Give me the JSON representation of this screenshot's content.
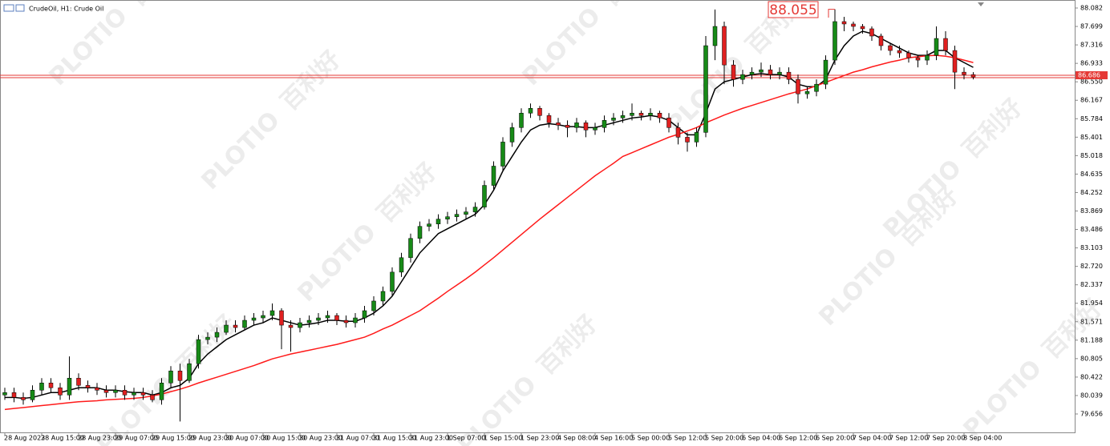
{
  "chart_data": {
    "type": "candlestick",
    "title": "CrudeOil, H1:  Crude Oil",
    "watermark": [
      "PLOTIO",
      "百利好"
    ],
    "annotation": "88.055",
    "up_color": "#178a17",
    "down_color": "#e02020",
    "ylim": [
      79.274,
      88.248
    ],
    "yticks": [
      88.082,
      87.699,
      87.316,
      86.933,
      {
        "value": 86.55,
        "label": "86.550"
      },
      86.167,
      85.784,
      85.401,
      85.018,
      84.635,
      84.252,
      83.869,
      83.486,
      83.103,
      {
        "value": 82.72,
        "label": "82.720"
      },
      82.337,
      81.954,
      81.571,
      81.188,
      80.805,
      80.422,
      80.039,
      79.656
    ],
    "price_lines": [
      86.686,
      86.636
    ],
    "categories": [
      "28 Aug 2023",
      null,
      null,
      null,
      "28 Aug 15:00",
      null,
      null,
      null,
      "28 Aug 23:00",
      null,
      null,
      null,
      "29 Aug 07:00",
      null,
      null,
      null,
      "29 Aug 15:00",
      null,
      null,
      null,
      "29 Aug 23:00",
      null,
      null,
      null,
      "30 Aug 07:00",
      null,
      null,
      null,
      "30 Aug 15:00",
      null,
      null,
      null,
      "30 Aug 23:00",
      null,
      null,
      null,
      "31 Aug 07:00",
      null,
      null,
      null,
      "31 Aug 15:00",
      null,
      null,
      null,
      "31 Aug 23:00",
      null,
      null,
      null,
      "1 Sep 07:00",
      null,
      null,
      null,
      "1 Sep 15:00",
      null,
      null,
      null,
      "1 Sep 23:00",
      null,
      null,
      null,
      "4 Sep 08:00",
      null,
      null,
      null,
      "4 Sep 16:00",
      null,
      null,
      null,
      "5 Sep 00:00",
      null,
      null,
      null,
      "5 Sep 12:00",
      null,
      null,
      null,
      "5 Sep 20:00",
      null,
      null,
      null,
      "6 Sep 04:00",
      null,
      null,
      null,
      "6 Sep 12:00",
      null,
      null,
      null,
      "6 Sep 20:00",
      null,
      null,
      null,
      "7 Sep 04:00",
      null,
      null,
      null,
      "7 Sep 12:00",
      null,
      null,
      null,
      "7 Sep 20:00",
      null,
      null,
      null,
      "8 Sep 04:00",
      null
    ],
    "open": [
      80.05,
      80.1,
      80.0,
      79.95,
      80.15,
      80.3,
      80.2,
      80.05,
      80.4,
      80.25,
      80.2,
      80.15,
      80.1,
      80.15,
      80.05,
      80.1,
      80.05,
      79.95,
      80.3,
      80.55,
      80.35,
      80.7,
      81.2,
      81.25,
      81.35,
      81.5,
      81.45,
      81.6,
      81.65,
      81.7,
      81.8,
      81.5,
      81.45,
      81.55,
      81.6,
      81.65,
      81.7,
      81.6,
      81.55,
      81.65,
      81.8,
      82.0,
      82.2,
      82.6,
      82.9,
      83.3,
      83.55,
      83.6,
      83.7,
      83.75,
      83.8,
      83.85,
      83.95,
      84.4,
      84.8,
      85.3,
      85.6,
      85.9,
      86.0,
      85.85,
      85.7,
      85.65,
      85.6,
      85.7,
      85.55,
      85.6,
      85.75,
      85.8,
      85.85,
      85.9,
      85.85,
      85.9,
      85.8,
      85.6,
      85.4,
      85.3,
      85.5,
      87.3,
      87.7,
      86.9,
      86.6,
      86.7,
      86.75,
      86.8,
      86.7,
      86.75,
      86.6,
      86.3,
      86.35,
      86.5,
      87.0,
      87.8,
      87.75,
      87.7,
      87.65,
      87.5,
      87.3,
      87.2,
      87.15,
      87.05,
      87.0,
      87.1,
      87.45,
      87.2,
      86.75,
      86.7
    ],
    "high": [
      80.2,
      80.2,
      80.1,
      80.25,
      80.4,
      80.4,
      80.3,
      80.85,
      80.5,
      80.35,
      80.3,
      80.25,
      80.25,
      80.25,
      80.2,
      80.2,
      80.15,
      80.4,
      80.65,
      80.7,
      80.8,
      81.3,
      81.35,
      81.45,
      81.6,
      81.6,
      81.7,
      81.75,
      81.8,
      81.95,
      81.85,
      81.6,
      81.65,
      81.7,
      81.75,
      81.8,
      81.75,
      81.7,
      81.75,
      81.9,
      82.1,
      82.3,
      82.7,
      83.0,
      83.4,
      83.65,
      83.7,
      83.8,
      83.85,
      83.9,
      83.95,
      84.05,
      84.5,
      84.9,
      85.4,
      85.7,
      86.0,
      86.1,
      86.05,
      85.9,
      85.8,
      85.75,
      85.8,
      85.75,
      85.7,
      85.85,
      85.9,
      85.95,
      86.1,
      85.95,
      86.0,
      85.95,
      85.9,
      85.7,
      85.5,
      85.6,
      87.5,
      88.05,
      87.8,
      87.0,
      86.8,
      86.85,
      86.95,
      86.9,
      86.85,
      86.85,
      86.7,
      86.45,
      86.6,
      87.1,
      88.055,
      87.9,
      87.8,
      87.75,
      87.7,
      87.55,
      87.35,
      87.3,
      87.2,
      87.1,
      87.2,
      87.7,
      87.6,
      87.3,
      86.85,
      86.75
    ],
    "low": [
      79.95,
      79.9,
      79.85,
      79.9,
      80.05,
      80.1,
      79.95,
      79.95,
      80.15,
      80.1,
      80.05,
      80.0,
      80.0,
      79.95,
      79.95,
      79.95,
      79.9,
      79.85,
      80.2,
      79.5,
      80.3,
      80.6,
      81.1,
      81.15,
      81.3,
      81.35,
      81.4,
      81.5,
      81.55,
      81.6,
      81.0,
      80.95,
      81.35,
      81.45,
      81.5,
      81.55,
      81.5,
      81.45,
      81.45,
      81.55,
      81.7,
      81.9,
      82.1,
      82.5,
      82.8,
      83.2,
      83.45,
      83.5,
      83.6,
      83.65,
      83.7,
      83.75,
      83.9,
      84.3,
      84.7,
      85.2,
      85.5,
      85.8,
      85.75,
      85.6,
      85.55,
      85.4,
      85.5,
      85.4,
      85.45,
      85.5,
      85.65,
      85.7,
      85.75,
      85.75,
      85.75,
      85.7,
      85.5,
      85.25,
      85.1,
      85.2,
      85.4,
      87.0,
      86.5,
      86.45,
      86.5,
      86.6,
      86.65,
      86.6,
      86.6,
      86.5,
      86.1,
      86.2,
      86.25,
      86.4,
      86.9,
      87.6,
      87.6,
      87.55,
      87.4,
      87.2,
      87.1,
      87.05,
      86.95,
      86.85,
      86.9,
      87.0,
      87.1,
      86.4,
      86.6,
      86.6
    ],
    "close": [
      80.1,
      80.0,
      79.95,
      80.15,
      80.3,
      80.2,
      80.05,
      80.4,
      80.25,
      80.2,
      80.15,
      80.1,
      80.15,
      80.05,
      80.1,
      80.05,
      79.95,
      80.3,
      80.55,
      80.35,
      80.7,
      81.2,
      81.25,
      81.35,
      81.5,
      81.45,
      81.6,
      81.65,
      81.7,
      81.8,
      81.5,
      81.45,
      81.55,
      81.6,
      81.65,
      81.7,
      81.6,
      81.55,
      81.65,
      81.8,
      82.0,
      82.2,
      82.6,
      82.9,
      83.3,
      83.55,
      83.6,
      83.7,
      83.75,
      83.8,
      83.85,
      83.95,
      84.4,
      84.8,
      85.3,
      85.6,
      85.9,
      86.0,
      85.85,
      85.7,
      85.65,
      85.6,
      85.7,
      85.55,
      85.6,
      85.75,
      85.8,
      85.85,
      85.9,
      85.85,
      85.9,
      85.8,
      85.6,
      85.4,
      85.3,
      85.5,
      87.3,
      87.7,
      86.9,
      86.6,
      86.7,
      86.75,
      86.8,
      86.7,
      86.75,
      86.6,
      86.3,
      86.35,
      86.5,
      87.0,
      87.8,
      87.75,
      87.7,
      87.65,
      87.5,
      87.3,
      87.2,
      87.15,
      87.05,
      87.0,
      87.1,
      87.45,
      87.2,
      86.75,
      86.7,
      86.65
    ],
    "indicators": [
      {
        "color": "#000000",
        "values": [
          80.0,
          80.0,
          79.98,
          80.0,
          80.05,
          80.1,
          80.1,
          80.15,
          80.2,
          80.2,
          80.2,
          80.15,
          80.15,
          80.12,
          80.1,
          80.1,
          80.05,
          80.1,
          80.2,
          80.25,
          80.4,
          80.7,
          80.9,
          81.05,
          81.2,
          81.3,
          81.4,
          81.5,
          81.55,
          81.65,
          81.6,
          81.55,
          81.5,
          81.52,
          81.55,
          81.6,
          81.6,
          81.58,
          81.58,
          81.65,
          81.75,
          81.9,
          82.1,
          82.4,
          82.7,
          83.0,
          83.2,
          83.4,
          83.5,
          83.6,
          83.7,
          83.8,
          84.0,
          84.3,
          84.7,
          85.0,
          85.3,
          85.55,
          85.65,
          85.68,
          85.66,
          85.62,
          85.62,
          85.6,
          85.6,
          85.65,
          85.7,
          85.75,
          85.8,
          85.82,
          85.85,
          85.82,
          85.75,
          85.6,
          85.45,
          85.45,
          85.9,
          86.4,
          86.55,
          86.6,
          86.65,
          86.7,
          86.72,
          86.7,
          86.7,
          86.65,
          86.5,
          86.45,
          86.45,
          86.6,
          87.0,
          87.3,
          87.5,
          87.6,
          87.55,
          87.45,
          87.35,
          87.25,
          87.15,
          87.1,
          87.1,
          87.2,
          87.2,
          87.05,
          86.95,
          86.85
        ]
      },
      {
        "color": "#ff1a1a",
        "values": [
          79.75,
          79.77,
          79.79,
          79.81,
          79.83,
          79.85,
          79.87,
          79.89,
          79.91,
          79.92,
          79.93,
          79.95,
          79.96,
          79.97,
          79.98,
          80.0,
          80.03,
          80.07,
          80.12,
          80.17,
          80.23,
          80.3,
          80.36,
          80.42,
          80.48,
          80.54,
          80.6,
          80.66,
          80.73,
          80.8,
          80.85,
          80.9,
          80.94,
          80.98,
          81.02,
          81.06,
          81.1,
          81.15,
          81.2,
          81.25,
          81.33,
          81.42,
          81.5,
          81.6,
          81.7,
          81.8,
          81.93,
          82.06,
          82.2,
          82.33,
          82.46,
          82.6,
          82.75,
          82.9,
          83.06,
          83.22,
          83.38,
          83.54,
          83.7,
          83.85,
          84.0,
          84.15,
          84.3,
          84.45,
          84.6,
          84.73,
          84.86,
          85.0,
          85.08,
          85.16,
          85.24,
          85.32,
          85.4,
          85.46,
          85.53,
          85.6,
          85.7,
          85.78,
          85.86,
          85.93,
          86.0,
          86.06,
          86.12,
          86.18,
          86.24,
          86.3,
          86.35,
          86.4,
          86.47,
          86.54,
          86.61,
          86.68,
          86.75,
          86.8,
          86.86,
          86.91,
          86.96,
          87.0,
          87.05,
          87.07,
          87.09,
          87.1,
          87.08,
          87.05,
          87.0,
          86.95
        ]
      }
    ]
  }
}
